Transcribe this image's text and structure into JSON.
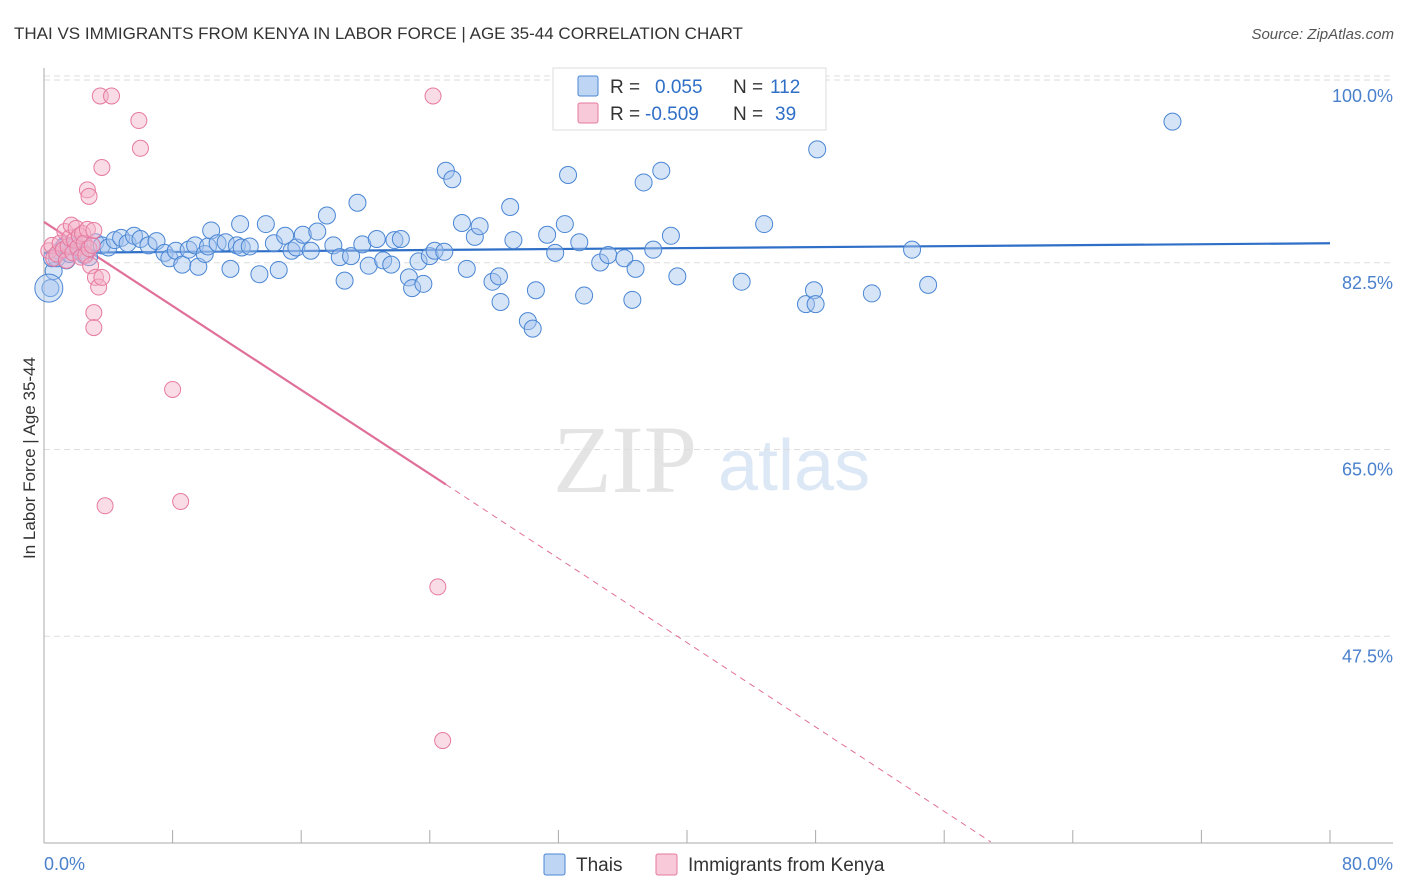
{
  "title": "THAI VS IMMIGRANTS FROM KENYA IN LABOR FORCE | AGE 35-44 CORRELATION CHART",
  "source": "Source: ZipAtlas.com",
  "watermark": {
    "zip": "ZIP",
    "atlas": "atlas"
  },
  "colors": {
    "blue": "#4a86d4",
    "blue_fill": "rgba(163,196,238,0.45)",
    "blue_line": "#2f6fc7",
    "pink": "#e67aa0",
    "pink_fill": "rgba(245,178,200,0.45)",
    "pink_line": "#e0709a",
    "tick_blue": "#4a80cc",
    "grid": "#dddddd"
  },
  "legend": {
    "rows": [
      {
        "r_label": "R =",
        "r_value": "0.055",
        "n_label": "N =",
        "n_value": "112",
        "series": "blue"
      },
      {
        "r_label": "R =",
        "r_value": "-0.509",
        "n_label": "N =",
        "n_value": "39",
        "series": "pink"
      }
    ]
  },
  "bottom_legend": [
    "Thais",
    "Immigrants from Kenya"
  ],
  "chart_data": {
    "type": "scatter",
    "xlabel": "",
    "ylabel": "In Labor Force | Age 35-44",
    "x_ticks": [
      "0.0%",
      "80.0%"
    ],
    "y_ticks": [
      "100.0%",
      "82.5%",
      "65.0%",
      "47.5%"
    ],
    "xlim": [
      0,
      80
    ],
    "ylim": [
      30,
      101.5
    ],
    "grid": true,
    "legend_position": "top-center",
    "series": [
      {
        "name": "Thais",
        "color": "blue",
        "trend": {
          "x": [
            0,
            80
          ],
          "y": [
            85.3,
            86.2
          ]
        },
        "points": [
          [
            0.4,
            82.0
          ],
          [
            0.6,
            83.6
          ],
          [
            0.8,
            84.8
          ],
          [
            1.0,
            85.4
          ],
          [
            1.2,
            85.8
          ],
          [
            1.4,
            84.6
          ],
          [
            1.6,
            85.2
          ],
          [
            1.8,
            85.9
          ],
          [
            2.0,
            86.0
          ],
          [
            2.2,
            85.5
          ],
          [
            2.4,
            86.1
          ],
          [
            2.8,
            84.9
          ],
          [
            3.2,
            86.3
          ],
          [
            3.6,
            86.0
          ],
          [
            4.0,
            85.8
          ],
          [
            4.4,
            86.5
          ],
          [
            4.8,
            86.7
          ],
          [
            5.2,
            86.2
          ],
          [
            5.6,
            86.9
          ],
          [
            6.0,
            86.6
          ],
          [
            6.5,
            86.0
          ],
          [
            7.0,
            86.4
          ],
          [
            7.5,
            85.3
          ],
          [
            7.8,
            84.8
          ],
          [
            8.2,
            85.5
          ],
          [
            8.6,
            84.2
          ],
          [
            9.0,
            85.6
          ],
          [
            9.4,
            86.0
          ],
          [
            9.6,
            84.0
          ],
          [
            10.0,
            85.2
          ],
          [
            10.2,
            85.9
          ],
          [
            10.4,
            87.4
          ],
          [
            10.8,
            86.2
          ],
          [
            11.3,
            86.3
          ],
          [
            11.6,
            83.8
          ],
          [
            12.0,
            86.0
          ],
          [
            12.3,
            85.8
          ],
          [
            12.2,
            88.0
          ],
          [
            12.8,
            85.9
          ],
          [
            13.4,
            83.3
          ],
          [
            13.8,
            88.0
          ],
          [
            14.3,
            86.2
          ],
          [
            14.6,
            83.7
          ],
          [
            15.0,
            86.9
          ],
          [
            15.4,
            85.5
          ],
          [
            15.7,
            85.8
          ],
          [
            16.1,
            87.0
          ],
          [
            16.6,
            85.5
          ],
          [
            17.0,
            87.3
          ],
          [
            17.6,
            88.8
          ],
          [
            18.0,
            86.0
          ],
          [
            18.4,
            84.9
          ],
          [
            18.7,
            82.7
          ],
          [
            19.1,
            85.0
          ],
          [
            19.5,
            90.0
          ],
          [
            19.8,
            86.1
          ],
          [
            20.2,
            84.1
          ],
          [
            20.7,
            86.6
          ],
          [
            21.1,
            84.6
          ],
          [
            21.6,
            84.2
          ],
          [
            21.8,
            86.5
          ],
          [
            22.2,
            86.6
          ],
          [
            22.7,
            83.0
          ],
          [
            22.9,
            82.0
          ],
          [
            23.3,
            84.5
          ],
          [
            23.6,
            82.4
          ],
          [
            24.0,
            85.0
          ],
          [
            24.3,
            85.5
          ],
          [
            24.9,
            85.4
          ],
          [
            25.0,
            93.0
          ],
          [
            25.4,
            92.2
          ],
          [
            26.0,
            88.1
          ],
          [
            26.3,
            83.8
          ],
          [
            26.8,
            86.8
          ],
          [
            27.1,
            87.8
          ],
          [
            27.9,
            82.6
          ],
          [
            28.3,
            83.1
          ],
          [
            28.4,
            80.7
          ],
          [
            29.0,
            89.6
          ],
          [
            29.2,
            86.5
          ],
          [
            30.1,
            78.9
          ],
          [
            30.4,
            78.2
          ],
          [
            30.6,
            81.8
          ],
          [
            31.3,
            87.0
          ],
          [
            31.8,
            85.3
          ],
          [
            32.4,
            88.0
          ],
          [
            32.6,
            92.6
          ],
          [
            33.3,
            86.3
          ],
          [
            33.6,
            81.3
          ],
          [
            34.6,
            84.4
          ],
          [
            35.1,
            85.1
          ],
          [
            36.1,
            84.8
          ],
          [
            36.6,
            80.9
          ],
          [
            36.8,
            83.8
          ],
          [
            37.3,
            91.9
          ],
          [
            37.9,
            85.6
          ],
          [
            38.4,
            93.0
          ],
          [
            39.0,
            86.9
          ],
          [
            39.4,
            83.1
          ],
          [
            43.4,
            82.6
          ],
          [
            44.8,
            88.0
          ],
          [
            47.4,
            80.5
          ],
          [
            47.9,
            81.8
          ],
          [
            48.0,
            80.5
          ],
          [
            48.1,
            95.0
          ],
          [
            51.5,
            81.5
          ],
          [
            54.0,
            85.6
          ],
          [
            55.0,
            82.3
          ],
          [
            70.2,
            97.6
          ],
          [
            0.5,
            84.8
          ],
          [
            1.3,
            86.0
          ],
          [
            2.5,
            85.1
          ]
        ]
      },
      {
        "name": "Immigrants from Kenya",
        "color": "pink",
        "trend_solid": {
          "x": [
            0,
            25
          ],
          "y": [
            88.2,
            63.6
          ]
        },
        "trend_dashed": {
          "x": [
            25,
            58.9
          ],
          "y": [
            63.6,
            30.1
          ]
        },
        "points": [
          [
            0.3,
            85.5
          ],
          [
            0.5,
            86.0
          ],
          [
            0.6,
            84.8
          ],
          [
            0.8,
            85.2
          ],
          [
            1.0,
            86.2
          ],
          [
            1.2,
            85.6
          ],
          [
            1.3,
            87.3
          ],
          [
            1.4,
            84.6
          ],
          [
            1.5,
            85.9
          ],
          [
            1.6,
            86.7
          ],
          [
            1.7,
            87.9
          ],
          [
            1.8,
            85.3
          ],
          [
            1.9,
            86.5
          ],
          [
            2.0,
            87.6
          ],
          [
            2.1,
            85.8
          ],
          [
            2.2,
            86.9
          ],
          [
            2.3,
            84.9
          ],
          [
            2.4,
            87.1
          ],
          [
            2.5,
            86.2
          ],
          [
            2.6,
            85.1
          ],
          [
            2.7,
            87.5
          ],
          [
            2.8,
            85.7
          ],
          [
            2.9,
            84.1
          ],
          [
            3.0,
            86.0
          ],
          [
            2.7,
            91.2
          ],
          [
            2.8,
            90.6
          ],
          [
            3.1,
            87.4
          ],
          [
            3.2,
            83.0
          ],
          [
            3.4,
            82.1
          ],
          [
            3.6,
            83.0
          ],
          [
            3.1,
            79.7
          ],
          [
            3.1,
            78.3
          ],
          [
            3.6,
            93.3
          ],
          [
            3.5,
            100.0
          ],
          [
            4.2,
            100.0
          ],
          [
            5.9,
            97.7
          ],
          [
            6.0,
            95.1
          ],
          [
            8.0,
            72.5
          ],
          [
            3.8,
            61.6
          ]
        ],
        "extra_points": [
          [
            8.5,
            62.0
          ],
          [
            24.2,
            100.0
          ],
          [
            24.5,
            54.0
          ],
          [
            24.8,
            39.6
          ]
        ]
      }
    ]
  }
}
